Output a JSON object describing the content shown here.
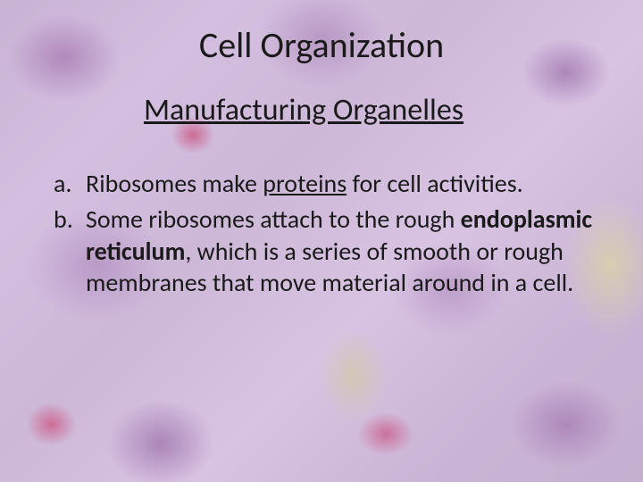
{
  "slide": {
    "title": "Cell Organization",
    "subtitle": "Manufacturing Organelles",
    "items": [
      {
        "marker": "a.",
        "pre": "Ribosomes make ",
        "underlined": "proteins",
        "post": " for cell activities."
      },
      {
        "marker": "b.",
        "pre": "Some ribosomes attach to the rough ",
        "bold": "endoplasmic reticulum",
        "post": ", which is a series of smooth or rough membranes that move material around in a cell."
      }
    ]
  }
}
